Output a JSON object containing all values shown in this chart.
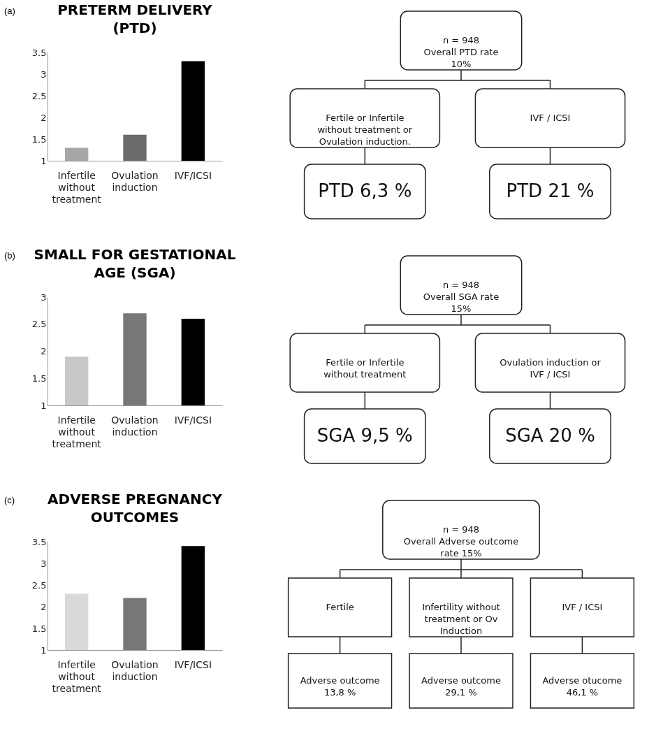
{
  "chart_data": [
    {
      "type": "bar",
      "title": "PRETERM  DELIVERY\n(PTD)",
      "annotations": [
        "(a)"
      ],
      "categories": [
        "Infertile without treatment",
        "Ovulation induction",
        "IVF/ICSI"
      ],
      "values": [
        1.3,
        1.6,
        3.3
      ],
      "colors": [
        "#a6a6a6",
        "#6b6b6b",
        "#000000"
      ],
      "ylim": [
        1,
        3.5
      ],
      "yticks": [
        1,
        1.5,
        2,
        2.5,
        3,
        3.5
      ],
      "grid": false
    },
    {
      "type": "other",
      "annotations": [
        "n = 948\nOverall PTD rate\n10%",
        "Fertile  or Infertile\nwithout  treatment or\nOvulation induction.",
        "IVF / ICSI",
        "PTD  6,3 %",
        "PTD   21 %"
      ]
    },
    {
      "type": "bar",
      "title": "SMALL FOR GESTATIONAL\nAGE (SGA)",
      "annotations": [
        "(b)"
      ],
      "categories": [
        "Infertile without treatment",
        "Ovulation induction",
        "IVF/ICSI"
      ],
      "values": [
        1.9,
        2.7,
        2.6
      ],
      "colors": [
        "#c8c8c8",
        "#777777",
        "#000000"
      ],
      "ylim": [
        1,
        3
      ],
      "yticks": [
        1,
        1.5,
        2,
        2.5,
        3
      ],
      "grid": false
    },
    {
      "type": "other",
      "annotations": [
        "n = 948\nOverall SGA rate\n15%",
        "Fertile  or Infertile\nwithout  treatment",
        "Ovulation induction or\nIVF / ICSI",
        "SGA  9,5 %",
        "SGA   20 %"
      ]
    },
    {
      "type": "bar",
      "title": "ADVERSE PREGNANCY\nOUTCOMES",
      "annotations": [
        "(c)"
      ],
      "categories": [
        "Infertile without treatment",
        "Ovulation induction",
        "IVF/ICSI"
      ],
      "values": [
        2.3,
        2.2,
        3.4
      ],
      "colors": [
        "#d9d9d9",
        "#777777",
        "#000000"
      ],
      "ylim": [
        1,
        3.5
      ],
      "yticks": [
        1,
        1.5,
        2,
        2.5,
        3,
        3.5
      ],
      "grid": false
    },
    {
      "type": "other",
      "annotations": [
        "n = 948\nOverall Adverse outcome\nrate  15%",
        "Fertile",
        "Infertility without\ntreatment or Ov\nInduction",
        "IVF / ICSI",
        "Adverse outcome\n13,8 %",
        "Adverse outcome\n29,1 %",
        "Adverse otucome\n46,1 %"
      ]
    }
  ]
}
